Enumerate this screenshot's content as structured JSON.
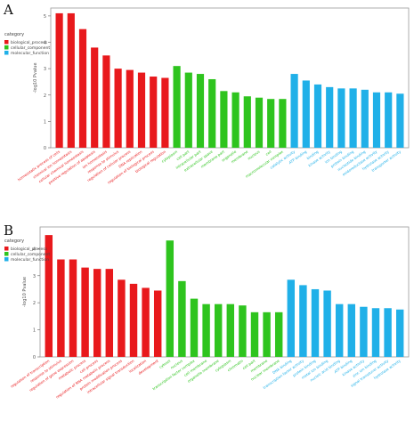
{
  "panels": [
    {
      "letter": "A"
    },
    {
      "letter": "B"
    }
  ],
  "chart_data": [
    {
      "type": "bar",
      "panel": "A",
      "ylabel": "-log10 Pvalue",
      "ylim": [
        0,
        5.3
      ],
      "yticks": [
        0,
        1,
        2,
        3,
        4,
        5
      ],
      "legend": {
        "title": "category",
        "placement": "top-left",
        "entries": [
          {
            "name": "biological_process",
            "color": "#e8191c"
          },
          {
            "name": "cellular_component",
            "color": "#2ec41e"
          },
          {
            "name": "molecular_function",
            "color": "#20b0e8"
          }
        ]
      },
      "colors": {
        "biological_process": "#e8191c",
        "cellular_component": "#2ec41e",
        "molecular_function": "#20b0e8"
      },
      "categories": [
        "bp1",
        "bp2",
        "bp3",
        "bp4",
        "bp5",
        "bp6",
        "bp7",
        "bp8",
        "bp9",
        "bp10",
        "cc1",
        "cc2",
        "cc3",
        "cc4",
        "cc5",
        "cc6",
        "cc7",
        "cc8",
        "cc9",
        "cc10",
        "mf1",
        "mf2",
        "mf3",
        "mf4",
        "mf5",
        "mf6",
        "mf7",
        "mf8",
        "mf9",
        "mf10"
      ],
      "labels": [
        "homeostatic process of cells",
        "chemical ion homeostasis",
        "cellular chemical homeostasis",
        "positive regulation of apoptosis",
        "ion homeostasis",
        "response to stimulus",
        "regulation of cellular process",
        "DNA replication",
        "regulation of biological process",
        "biological regulation",
        "cytoplasm",
        "cell part",
        "intracellular part",
        "extracellular space",
        "membrane part",
        "organelle",
        "membrane",
        "nucleus",
        "cell",
        "macromolecular complex",
        "catalytic activity",
        "ATP binding",
        "binding",
        "kinase activity",
        "ion binding",
        "protein binding",
        "nucleotide binding",
        "oxidoreductase activity",
        "hydrolase activity",
        "transporter activity"
      ],
      "groups": [
        "biological_process",
        "biological_process",
        "biological_process",
        "biological_process",
        "biological_process",
        "biological_process",
        "biological_process",
        "biological_process",
        "biological_process",
        "biological_process",
        "cellular_component",
        "cellular_component",
        "cellular_component",
        "cellular_component",
        "cellular_component",
        "cellular_component",
        "cellular_component",
        "cellular_component",
        "cellular_component",
        "cellular_component",
        "molecular_function",
        "molecular_function",
        "molecular_function",
        "molecular_function",
        "molecular_function",
        "molecular_function",
        "molecular_function",
        "molecular_function",
        "molecular_function",
        "molecular_function"
      ],
      "values": [
        5.1,
        5.1,
        4.5,
        3.8,
        3.5,
        3.0,
        2.95,
        2.85,
        2.7,
        2.65,
        3.1,
        2.85,
        2.8,
        2.6,
        2.15,
        2.1,
        1.95,
        1.9,
        1.85,
        1.85,
        2.8,
        2.55,
        2.4,
        2.3,
        2.25,
        2.25,
        2.2,
        2.1,
        2.1,
        2.05
      ]
    },
    {
      "type": "bar",
      "panel": "B",
      "ylabel": "-log10 Pvalue",
      "ylim": [
        0,
        4.8
      ],
      "yticks": [
        0,
        1,
        2,
        3,
        4
      ],
      "legend": {
        "title": "category",
        "placement": "top-left",
        "entries": [
          {
            "name": "biological_process",
            "color": "#e8191c"
          },
          {
            "name": "cellular_component",
            "color": "#2ec41e"
          },
          {
            "name": "molecular_function",
            "color": "#20b0e8"
          }
        ]
      },
      "colors": {
        "biological_process": "#e8191c",
        "cellular_component": "#2ec41e",
        "molecular_function": "#20b0e8"
      },
      "categories": [
        "bp1",
        "bp2",
        "bp3",
        "bp4",
        "bp5",
        "bp6",
        "bp7",
        "bp8",
        "bp9",
        "bp10",
        "cc1",
        "cc2",
        "cc3",
        "cc4",
        "cc5",
        "cc6",
        "cc7",
        "cc8",
        "cc9",
        "cc10",
        "mf1",
        "mf2",
        "mf3",
        "mf4",
        "mf5",
        "mf6",
        "mf7",
        "mf8",
        "mf9",
        "mf10"
      ],
      "labels": [
        "regulation of transcription",
        "response to stimulus",
        "regulation of gene expression",
        "metabolic process",
        "cell process",
        "regulation of RNA metabolic process",
        "protein modification process",
        "intracellular signal transduction",
        "localization",
        "development",
        "cytosol",
        "nucleus",
        "transcription factor complex",
        "cell membrane",
        "organelle membrane",
        "cytoplasm",
        "chromatin",
        "cell part",
        "membrane",
        "nuclear membrane",
        "DNA binding",
        "transcription factor activity",
        "protein binding",
        "metal ion binding",
        "nucleic acid binding",
        "ATP binding",
        "kinase activity",
        "zinc ion binding",
        "signal transducer activity",
        "hydrolase activity"
      ],
      "groups": [
        "biological_process",
        "biological_process",
        "biological_process",
        "biological_process",
        "biological_process",
        "biological_process",
        "biological_process",
        "biological_process",
        "biological_process",
        "biological_process",
        "cellular_component",
        "cellular_component",
        "cellular_component",
        "cellular_component",
        "cellular_component",
        "cellular_component",
        "cellular_component",
        "cellular_component",
        "cellular_component",
        "cellular_component",
        "molecular_function",
        "molecular_function",
        "molecular_function",
        "molecular_function",
        "molecular_function",
        "molecular_function",
        "molecular_function",
        "molecular_function",
        "molecular_function",
        "molecular_function"
      ],
      "values": [
        4.5,
        3.6,
        3.6,
        3.3,
        3.25,
        3.25,
        2.85,
        2.7,
        2.55,
        2.45,
        4.3,
        2.8,
        2.15,
        1.95,
        1.95,
        1.95,
        1.9,
        1.65,
        1.65,
        1.65,
        2.85,
        2.65,
        2.5,
        2.45,
        1.95,
        1.95,
        1.85,
        1.8,
        1.8,
        1.75
      ]
    }
  ]
}
